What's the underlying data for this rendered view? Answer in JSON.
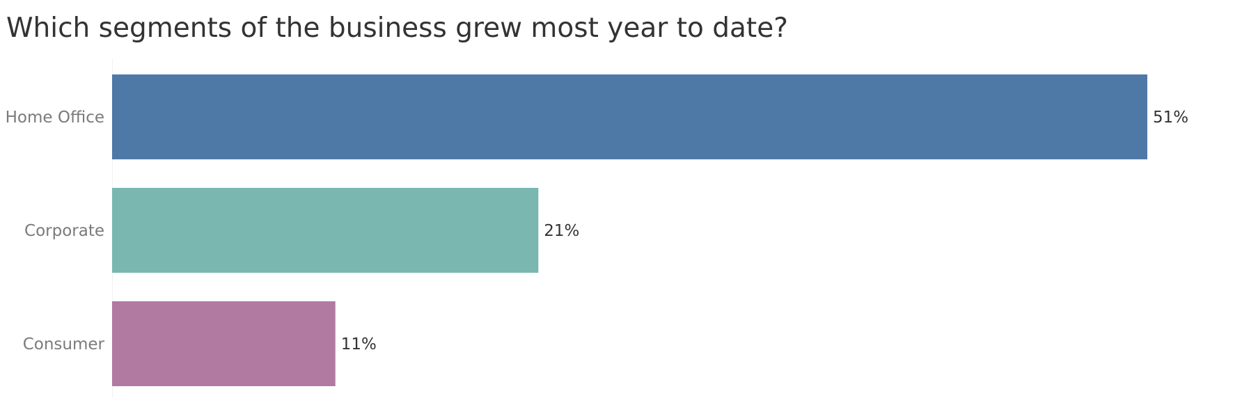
{
  "chart_data": {
    "type": "bar",
    "orientation": "horizontal",
    "title": "Which segments of the business grew most year to date?",
    "categories": [
      "Home Office",
      "Corporate",
      "Consumer"
    ],
    "values": [
      51,
      21,
      11
    ],
    "value_labels": [
      "51%",
      "21%",
      "11%"
    ],
    "colors": [
      "#4e79a7",
      "#79b7b0",
      "#b07aa1"
    ],
    "xlim": [
      0,
      51
    ],
    "grid": false,
    "legend": "none"
  }
}
